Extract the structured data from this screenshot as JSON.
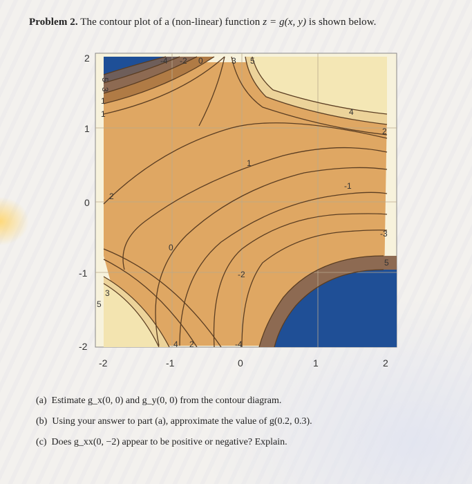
{
  "problem": {
    "number": "Problem 2.",
    "text_before": " The contour plot of a (non-linear) function ",
    "formula": "z = g(x, y)",
    "text_after": " is shown below."
  },
  "plot": {
    "x_ticks": [
      "-2",
      "-1",
      "0",
      "1",
      "2"
    ],
    "y_ticks": [
      "2",
      "1",
      "0",
      "-1",
      "-2"
    ],
    "contour_labels": [
      {
        "text": "-4",
        "role": "top"
      },
      {
        "text": "-2",
        "role": "top"
      },
      {
        "text": "0",
        "role": "top"
      },
      {
        "text": "3",
        "role": "top"
      },
      {
        "text": "5",
        "role": "top"
      },
      {
        "text": "5",
        "role": "left-top"
      },
      {
        "text": "3",
        "role": "left-top"
      },
      {
        "text": "1",
        "role": "left-top"
      },
      {
        "text": "1",
        "role": "left-top"
      },
      {
        "text": "4",
        "role": "right"
      },
      {
        "text": "2",
        "role": "right"
      },
      {
        "text": "1",
        "role": "center"
      },
      {
        "text": "-1",
        "role": "right"
      },
      {
        "text": "2",
        "role": "left-mid"
      },
      {
        "text": "0",
        "role": "center"
      },
      {
        "text": "-3",
        "role": "right"
      },
      {
        "text": "5",
        "role": "right"
      },
      {
        "text": "-2",
        "role": "center"
      },
      {
        "text": "3",
        "role": "left-bottom"
      },
      {
        "text": "5",
        "role": "left-bottom"
      },
      {
        "text": "4",
        "role": "bottom"
      },
      {
        "text": "2",
        "role": "bottom"
      },
      {
        "text": "-4",
        "role": "bottom"
      }
    ],
    "colors": {
      "background": "#dfa763",
      "dark_blue": "#1f4f96",
      "light_region": "#f4e7b5",
      "contour_line": "#5a3d22"
    }
  },
  "questions": [
    {
      "label": "(a)",
      "text": "Estimate g_x(0, 0) and g_y(0, 0) from the contour diagram."
    },
    {
      "label": "(b)",
      "text": "Using your answer to part (a), approximate the value of g(0.2, 0.3)."
    },
    {
      "label": "(c)",
      "text": "Does g_xx(0, −2) appear to be positive or negative? Explain."
    }
  ]
}
